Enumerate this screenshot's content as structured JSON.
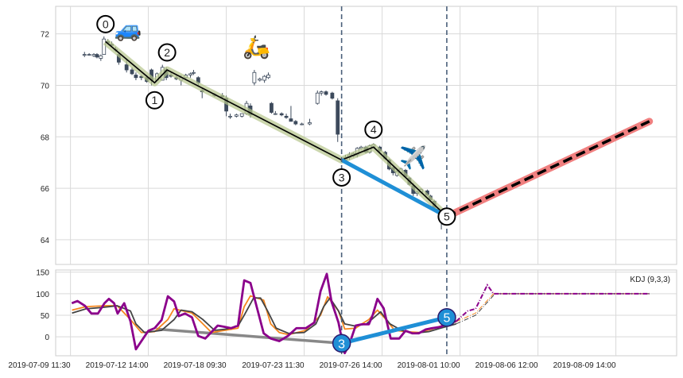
{
  "chart_data": [
    {
      "type": "candlestick",
      "name": "price",
      "xlim": [
        -1.9,
        77.8
      ],
      "ylim": [
        63.04,
        73.07
      ],
      "yticks": [
        64,
        66,
        68,
        70,
        72
      ],
      "grid": true,
      "colors": {
        "bear": "#3d4a5c",
        "bull": "#ffffff",
        "edge": "#3d4a5c",
        "zigzag_halo": "#b5c48a",
        "zigzag": "#000000",
        "segment": "#1f8fd6",
        "projection": "#f08080",
        "projection_dash": "#000000",
        "vline": "#4a5f7a"
      },
      "candles": [
        [
          1.8,
          71.2,
          71.3,
          71.1,
          71.2
        ],
        [
          2.4,
          71.2,
          71.25,
          71.15,
          71.2
        ],
        [
          3.0,
          71.15,
          71.25,
          71.1,
          71.2
        ],
        [
          3.4,
          71.2,
          71.25,
          71.05,
          71.1
        ],
        [
          3.9,
          71.05,
          71.2,
          70.95,
          71.15
        ],
        [
          4.3,
          71.2,
          71.9,
          71.2,
          71.8
        ],
        [
          4.8,
          71.7,
          71.8,
          71.6,
          71.65
        ],
        [
          5.3,
          71.6,
          71.7,
          71.5,
          71.55
        ],
        [
          5.8,
          71.4,
          71.5,
          71.3,
          71.4
        ],
        [
          6.2,
          71.2,
          71.3,
          70.8,
          70.9
        ],
        [
          7.2,
          70.8,
          71.0,
          70.5,
          70.6
        ],
        [
          7.9,
          70.6,
          70.7,
          70.4,
          70.45
        ],
        [
          8.4,
          70.4,
          70.5,
          70.2,
          70.3
        ],
        [
          9.1,
          70.35,
          70.4,
          70.2,
          70.3
        ],
        [
          9.8,
          70.3,
          70.4,
          70.1,
          70.15
        ],
        [
          10.4,
          70.6,
          70.65,
          70.0,
          70.2
        ],
        [
          11.1,
          70.2,
          70.5,
          70.15,
          70.45
        ],
        [
          11.8,
          70.2,
          70.8,
          70.2,
          70.7
        ],
        [
          12.3,
          70.6,
          70.7,
          70.2,
          70.3
        ],
        [
          12.9,
          70.4,
          70.5,
          70.3,
          70.35
        ],
        [
          13.6,
          70.3,
          70.4,
          70.2,
          70.25
        ],
        [
          14.2,
          70.2,
          70.4,
          70.0,
          70.3
        ],
        [
          14.8,
          70.3,
          70.45,
          70.25,
          70.4
        ],
        [
          15.4,
          70.4,
          70.5,
          70.3,
          70.45
        ],
        [
          15.8,
          70.5,
          70.6,
          70.4,
          70.5
        ],
        [
          16.4,
          70.3,
          70.35,
          70.0,
          70.1
        ],
        [
          16.9,
          69.8,
          69.9,
          69.5,
          69.75
        ],
        [
          18.5,
          69.6,
          69.7,
          69.55,
          69.65
        ],
        [
          19.5,
          69.6,
          69.7,
          69.5,
          69.55
        ],
        [
          20.0,
          69.5,
          69.6,
          68.8,
          69.0
        ],
        [
          20.5,
          68.8,
          68.9,
          68.7,
          68.8
        ],
        [
          21.3,
          68.8,
          68.9,
          68.75,
          68.85
        ],
        [
          22.0,
          68.8,
          68.9,
          68.75,
          68.9
        ],
        [
          22.6,
          68.9,
          69.4,
          68.85,
          69.3
        ],
        [
          23.1,
          69.2,
          69.3,
          68.75,
          68.85
        ],
        [
          23.6,
          70.1,
          70.6,
          70.0,
          70.5
        ],
        [
          24.3,
          70.2,
          70.3,
          70.15,
          70.25
        ],
        [
          24.9,
          70.2,
          70.4,
          70.1,
          70.35
        ],
        [
          25.4,
          70.3,
          70.5,
          70.25,
          70.4
        ],
        [
          25.8,
          69.3,
          69.35,
          68.9,
          68.95
        ],
        [
          26.3,
          68.9,
          69.0,
          68.85,
          68.9
        ],
        [
          27.1,
          68.9,
          68.95,
          68.8,
          68.85
        ],
        [
          27.7,
          68.8,
          68.9,
          68.7,
          68.75
        ],
        [
          28.3,
          68.7,
          69.2,
          68.6,
          68.6
        ],
        [
          28.9,
          68.6,
          68.65,
          68.45,
          68.5
        ],
        [
          29.7,
          68.5,
          68.55,
          68.45,
          68.5
        ],
        [
          30.7,
          68.5,
          68.7,
          68.45,
          68.55
        ],
        [
          31.7,
          69.3,
          69.8,
          69.25,
          69.7
        ],
        [
          32.2,
          69.7,
          69.8,
          69.6,
          69.75
        ],
        [
          32.8,
          69.75,
          69.8,
          69.6,
          69.65
        ],
        [
          33.6,
          69.7,
          69.75,
          69.45,
          69.5
        ],
        [
          34.3,
          69.4,
          69.5,
          67.8,
          68.1
        ],
        [
          35.3,
          67.1,
          67.3,
          67.0,
          67.2
        ],
        [
          35.8,
          67.2,
          67.4,
          67.1,
          67.3
        ],
        [
          36.3,
          67.25,
          67.4,
          67.2,
          67.35
        ],
        [
          36.8,
          67.3,
          67.6,
          67.2,
          67.55
        ],
        [
          37.3,
          67.55,
          67.65,
          67.5,
          67.6
        ],
        [
          37.9,
          67.6,
          67.65,
          67.35,
          67.4
        ],
        [
          38.4,
          67.4,
          67.7,
          67.35,
          67.65
        ],
        [
          38.9,
          67.6,
          67.75,
          67.55,
          67.7
        ],
        [
          39.7,
          67.6,
          67.65,
          67.4,
          67.45
        ],
        [
          40.4,
          67.4,
          67.45,
          67.1,
          67.15
        ],
        [
          40.9,
          67.1,
          67.15,
          66.7,
          66.75
        ],
        [
          41.4,
          66.8,
          66.85,
          66.5,
          66.6
        ],
        [
          41.9,
          66.5,
          66.7,
          66.45,
          66.65
        ],
        [
          42.4,
          66.6,
          66.8,
          66.55,
          66.75
        ],
        [
          43.0,
          66.7,
          66.75,
          66.4,
          66.45
        ],
        [
          43.5,
          66.4,
          66.45,
          66.1,
          66.15
        ],
        [
          44.0,
          66.1,
          66.2,
          65.7,
          65.8
        ],
        [
          44.5,
          65.8,
          65.9,
          65.7,
          65.85
        ],
        [
          45.0,
          65.85,
          66.0,
          65.8,
          65.95
        ],
        [
          45.8,
          65.9,
          65.95,
          65.7,
          65.75
        ],
        [
          46.2,
          65.7,
          65.75,
          65.5,
          65.55
        ],
        [
          46.7,
          65.5,
          65.55,
          65.2,
          65.25
        ],
        [
          47.2,
          65.2,
          65.25,
          65.0,
          65.05
        ],
        [
          47.6,
          65.0,
          65.1,
          64.4,
          64.9
        ],
        [
          48.3,
          64.9,
          65.0,
          64.7,
          64.8
        ]
      ],
      "zigzag_points": [
        {
          "label": "0",
          "x": 4.5,
          "y": 71.7,
          "position": "above"
        },
        {
          "label": "1",
          "x": 10.8,
          "y": 70.1,
          "position": "below"
        },
        {
          "label": "2",
          "x": 12.4,
          "y": 70.6,
          "position": "above"
        },
        {
          "label": "3",
          "x": 34.8,
          "y": 67.1,
          "position": "below"
        },
        {
          "label": "4",
          "x": 38.9,
          "y": 67.6,
          "position": "above"
        },
        {
          "label": "5",
          "x": 48.3,
          "y": 64.9,
          "position": "center"
        }
      ],
      "segment": {
        "from": [
          34.8,
          67.1
        ],
        "to": [
          48.3,
          64.9
        ]
      },
      "projection": {
        "from": [
          48.3,
          64.9
        ],
        "to": [
          74.3,
          68.6
        ]
      },
      "vlines": [
        34.8,
        48.3
      ],
      "emoji_markers": [
        {
          "icon": "car",
          "glyph": "🚙",
          "x": 7.4,
          "y": 71.9
        },
        {
          "icon": "scooter",
          "glyph": "🛵",
          "x": 23.9,
          "y": 71.2
        },
        {
          "icon": "airplane",
          "glyph": "✈️",
          "x": 44.0,
          "y": 66.9
        }
      ]
    },
    {
      "type": "line",
      "name": "kdj",
      "legend": "KDJ (9,3,3)",
      "legend_placement": "top-right",
      "xlim": [
        -1.9,
        77.8
      ],
      "ylim": [
        -44,
        155
      ],
      "yticks": [
        0,
        50,
        100,
        150
      ],
      "xticks": [
        0,
        10,
        20,
        30,
        40,
        50,
        60,
        70
      ],
      "xtick_labels": [
        "2019-07-09 11:30",
        "2019-07-12 14:00",
        "2019-07-18 09:30",
        "2019-07-23 11:30",
        "2019-07-26 14:00",
        "2019-08-01 10:00",
        "2019-08-06 12:00",
        "2019-08-09 14:00"
      ],
      "series": [
        {
          "name": "K",
          "color": "#f5871f",
          "x": [
            0.2,
            2,
            4.4,
            6,
            7.7,
            9.1,
            10.8,
            12.5,
            13.3,
            15.6,
            17,
            18.1,
            19.8,
            21.5,
            22.3,
            23.1,
            24.8,
            25.7,
            26.8,
            28,
            30.2,
            32.1,
            33,
            34.4,
            35.2,
            36.6,
            37.4,
            38.3,
            39.4,
            40.5,
            41.6,
            43,
            44.7,
            46.4,
            47.5,
            49.5
          ],
          "y": [
            62,
            70,
            72,
            72,
            40,
            10,
            12,
            40,
            65,
            55,
            30,
            10,
            15,
            20,
            70,
            95,
            85,
            30,
            10,
            5,
            15,
            50,
            93,
            60,
            18,
            20,
            30,
            40,
            62,
            40,
            15,
            12,
            10,
            18,
            25,
            35
          ]
        },
        {
          "name": "D",
          "color": "#444444",
          "x": [
            0.2,
            2,
            4,
            6,
            7.7,
            8.4,
            9.5,
            11.7,
            13.3,
            14.2,
            15.6,
            17,
            18.5,
            20,
            21.5,
            22.3,
            23.5,
            24.4,
            25.3,
            26.4,
            28,
            30,
            31.5,
            32.5,
            33.3,
            34.4,
            35.2,
            36.5,
            38,
            39.8,
            41,
            42.5,
            44,
            46,
            47.5,
            49.5
          ],
          "y": [
            55,
            65,
            68,
            72,
            60,
            30,
            10,
            15,
            40,
            62,
            58,
            40,
            15,
            18,
            25,
            50,
            90,
            90,
            60,
            20,
            8,
            10,
            30,
            70,
            90,
            60,
            30,
            25,
            30,
            58,
            30,
            15,
            8,
            12,
            20,
            30
          ]
        },
        {
          "name": "J",
          "color": "#8b008b",
          "x": [
            0.17,
            0.9,
            1.85,
            2.69,
            3.53,
            4.37,
            4.93,
            5.6,
            6.05,
            6.9,
            7.7,
            8.4,
            9.1,
            10.0,
            10.8,
            11.7,
            12.5,
            13.3,
            13.9,
            14.7,
            15.6,
            16.4,
            17.3,
            18.1,
            18.9,
            19.8,
            20.6,
            21.5,
            22.3,
            23.1,
            24.0,
            24.8,
            25.7,
            26.8,
            27.9,
            29.0,
            30.2,
            31.3,
            32.1,
            32.9,
            33.5,
            34.4,
            35.2,
            35.8,
            36.6,
            37.4,
            38.3,
            38.8,
            39.4,
            40.2,
            41.1,
            41.6,
            42.2,
            43.0,
            43.9,
            44.7,
            45.6,
            46.4,
            47.5,
            48.6,
            49.5
          ],
          "y": [
            78,
            83,
            72,
            54,
            54,
            78,
            88,
            78,
            54,
            78,
            36,
            -29,
            -10,
            14,
            20,
            39,
            94,
            82,
            48,
            54,
            45,
            2,
            -4,
            11,
            26,
            23,
            20,
            26,
            131,
            125,
            63,
            8,
            -4,
            -10,
            2,
            20,
            20,
            33,
            106,
            146,
            82,
            33,
            -38,
            -17,
            26,
            29,
            29,
            51,
            88,
            66,
            -4,
            -4,
            -4,
            14,
            8,
            8,
            17,
            20,
            23,
            33,
            36
          ]
        }
      ],
      "projection_series": [
        {
          "name": "K",
          "color": "#f5871f",
          "x": [
            49.5,
            52,
            54.3,
            74.3
          ],
          "y": [
            35,
            55,
            100,
            100
          ]
        },
        {
          "name": "D",
          "color": "#444444",
          "x": [
            49.5,
            52,
            54.5,
            74.3
          ],
          "y": [
            30,
            50,
            100,
            100
          ]
        },
        {
          "name": "J",
          "color": "#8b008b",
          "x": [
            49.5,
            51,
            52,
            53.5,
            54.3,
            74.3
          ],
          "y": [
            36,
            60,
            65,
            120,
            100,
            100
          ]
        }
      ],
      "gray_line": {
        "color": "#888888",
        "from": [
          11,
          18
        ],
        "to": [
          34.8,
          -15
        ]
      },
      "segment": {
        "color": "#1f8fd6",
        "from": [
          34.8,
          -15
        ],
        "to": [
          48.3,
          45
        ]
      },
      "point_labels": [
        {
          "label": "3",
          "x": 34.8,
          "y": -15
        },
        {
          "label": "5",
          "x": 48.3,
          "y": 45
        }
      ],
      "vlines": [
        34.8,
        48.3
      ]
    }
  ]
}
